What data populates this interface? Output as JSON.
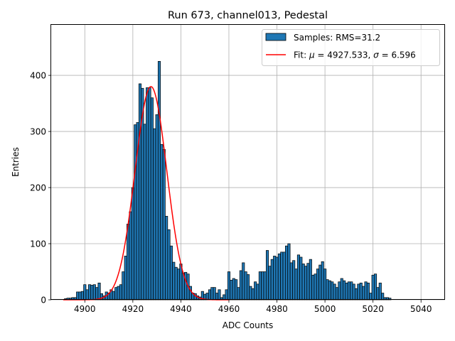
{
  "chart_data": {
    "type": "bar",
    "title": "Run 673, channel013, Pedestal",
    "xlabel": "ADC Counts",
    "ylabel": "Entries",
    "xlim": [
      4886,
      5050
    ],
    "ylim": [
      0,
      490
    ],
    "xticks": [
      4900,
      4920,
      4940,
      4960,
      4980,
      5000,
      5020,
      5040
    ],
    "yticks": [
      0,
      100,
      200,
      300,
      400
    ],
    "grid": true,
    "legend_position": "top-right",
    "bin_width": 1,
    "bar_color": "#1f77b4",
    "fit_color": "#ff0000",
    "histogram": {
      "name": "Samples: RMS=31.2",
      "bins": [
        [
          4892,
          2
        ],
        [
          4893,
          3
        ],
        [
          4894,
          3
        ],
        [
          4895,
          4
        ],
        [
          4896,
          4
        ],
        [
          4897,
          14
        ],
        [
          4898,
          14
        ],
        [
          4899,
          15
        ],
        [
          4900,
          27
        ],
        [
          4901,
          18
        ],
        [
          4902,
          27
        ],
        [
          4903,
          26
        ],
        [
          4904,
          27
        ],
        [
          4905,
          22
        ],
        [
          4906,
          30
        ],
        [
          4907,
          11
        ],
        [
          4908,
          7
        ],
        [
          4909,
          14
        ],
        [
          4910,
          12
        ],
        [
          4911,
          18
        ],
        [
          4912,
          15
        ],
        [
          4913,
          22
        ],
        [
          4914,
          24
        ],
        [
          4915,
          27
        ],
        [
          4916,
          50
        ],
        [
          4917,
          78
        ],
        [
          4918,
          135
        ],
        [
          4919,
          157
        ],
        [
          4920,
          200
        ],
        [
          4921,
          312
        ],
        [
          4922,
          316
        ],
        [
          4923,
          385
        ],
        [
          4924,
          377
        ],
        [
          4925,
          313
        ],
        [
          4926,
          378
        ],
        [
          4927,
          378
        ],
        [
          4928,
          360
        ],
        [
          4929,
          305
        ],
        [
          4930,
          330
        ],
        [
          4931,
          425
        ],
        [
          4932,
          277
        ],
        [
          4933,
          268
        ],
        [
          4934,
          149
        ],
        [
          4935,
          125
        ],
        [
          4936,
          96
        ],
        [
          4937,
          67
        ],
        [
          4938,
          58
        ],
        [
          4939,
          55
        ],
        [
          4940,
          64
        ],
        [
          4941,
          48
        ],
        [
          4942,
          49
        ],
        [
          4943,
          46
        ],
        [
          4944,
          24
        ],
        [
          4945,
          12
        ],
        [
          4946,
          11
        ],
        [
          4947,
          7
        ],
        [
          4948,
          5
        ],
        [
          4949,
          15
        ],
        [
          4950,
          10
        ],
        [
          4951,
          12
        ],
        [
          4952,
          18
        ],
        [
          4953,
          22
        ],
        [
          4954,
          22
        ],
        [
          4955,
          12
        ],
        [
          4956,
          18
        ],
        [
          4957,
          4
        ],
        [
          4958,
          9
        ],
        [
          4959,
          18
        ],
        [
          4960,
          50
        ],
        [
          4961,
          35
        ],
        [
          4962,
          38
        ],
        [
          4963,
          36
        ],
        [
          4964,
          22
        ],
        [
          4965,
          52
        ],
        [
          4966,
          66
        ],
        [
          4967,
          50
        ],
        [
          4968,
          45
        ],
        [
          4969,
          24
        ],
        [
          4970,
          20
        ],
        [
          4971,
          32
        ],
        [
          4972,
          28
        ],
        [
          4973,
          50
        ],
        [
          4974,
          50
        ],
        [
          4975,
          50
        ],
        [
          4976,
          88
        ],
        [
          4977,
          60
        ],
        [
          4978,
          72
        ],
        [
          4979,
          78
        ],
        [
          4980,
          76
        ],
        [
          4981,
          82
        ],
        [
          4982,
          85
        ],
        [
          4983,
          85
        ],
        [
          4984,
          96
        ],
        [
          4985,
          100
        ],
        [
          4986,
          66
        ],
        [
          4987,
          70
        ],
        [
          4988,
          55
        ],
        [
          4989,
          80
        ],
        [
          4990,
          76
        ],
        [
          4991,
          64
        ],
        [
          4992,
          60
        ],
        [
          4993,
          65
        ],
        [
          4994,
          72
        ],
        [
          4995,
          44
        ],
        [
          4996,
          46
        ],
        [
          4997,
          55
        ],
        [
          4998,
          62
        ],
        [
          4999,
          68
        ],
        [
          5000,
          55
        ],
        [
          5001,
          36
        ],
        [
          5002,
          34
        ],
        [
          5003,
          32
        ],
        [
          5004,
          28
        ],
        [
          5005,
          22
        ],
        [
          5006,
          32
        ],
        [
          5007,
          38
        ],
        [
          5008,
          34
        ],
        [
          5009,
          30
        ],
        [
          5010,
          32
        ],
        [
          5011,
          32
        ],
        [
          5012,
          28
        ],
        [
          5013,
          20
        ],
        [
          5014,
          28
        ],
        [
          5015,
          30
        ],
        [
          5016,
          24
        ],
        [
          5017,
          32
        ],
        [
          5018,
          30
        ],
        [
          5019,
          12
        ],
        [
          5020,
          44
        ],
        [
          5021,
          46
        ],
        [
          5022,
          22
        ],
        [
          5023,
          30
        ],
        [
          5024,
          12
        ],
        [
          5025,
          4
        ],
        [
          5026,
          4
        ],
        [
          5027,
          3
        ]
      ]
    },
    "fit": {
      "name": "Fit: μ = 4927.533, σ = 6.596",
      "label_prefix": "Fit: ",
      "mu_symbol": "μ",
      "mu_text": " = 4927.533, ",
      "sigma_symbol": "σ",
      "sigma_text": " = 6.596",
      "mu": 4927.533,
      "sigma": 6.596,
      "amplitude": 380,
      "x_range": [
        4891,
        4960
      ]
    }
  }
}
